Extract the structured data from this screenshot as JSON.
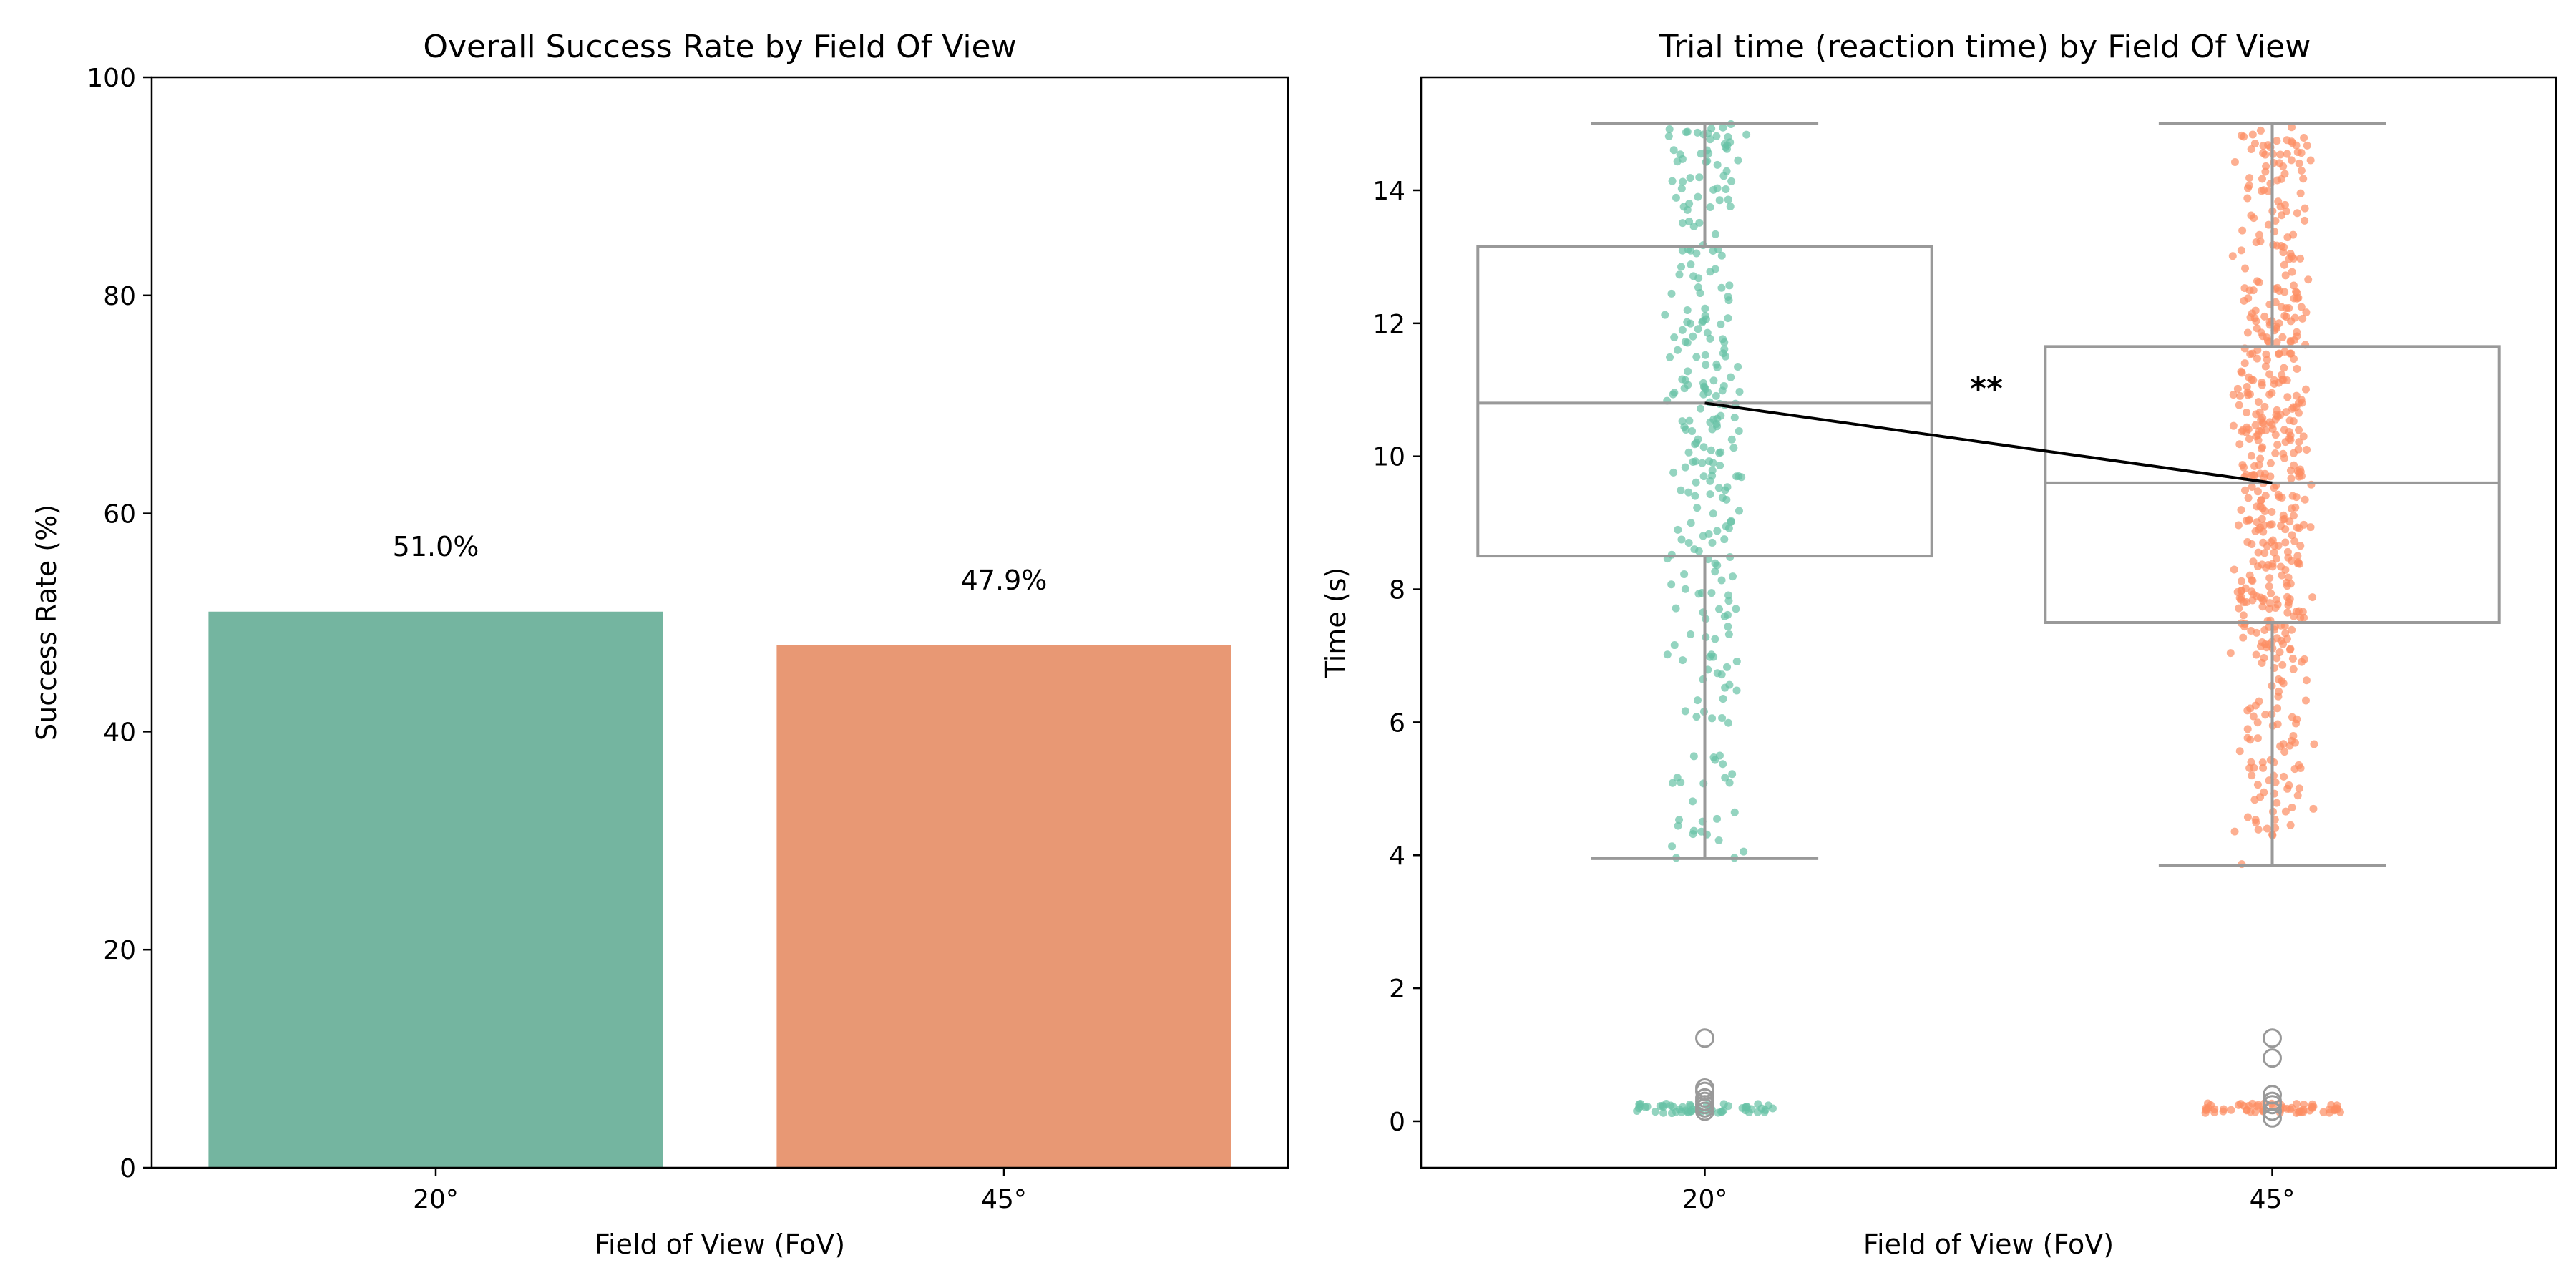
{
  "chart_data": [
    {
      "type": "bar",
      "title": "Overall Success Rate by Field Of View",
      "xlabel": "Field of View (FoV)",
      "ylabel": "Success Rate (%)",
      "categories": [
        "20°",
        "45°"
      ],
      "values": [
        51.0,
        47.9
      ],
      "value_labels": [
        "51.0%",
        "47.9%"
      ],
      "ylim": [
        0,
        100
      ],
      "yticks": [
        0,
        20,
        40,
        60,
        80,
        100
      ],
      "colors": [
        "#74b5a0",
        "#e89874"
      ],
      "grid": false
    },
    {
      "type": "box",
      "title": "Trial time (reaction time) by Field Of View",
      "xlabel": "Field of View (FoV)",
      "ylabel": "Time (s)",
      "categories": [
        "20°",
        "45°"
      ],
      "ylim": [
        -0.7,
        15.7
      ],
      "yticks": [
        0,
        2,
        4,
        6,
        8,
        10,
        12,
        14
      ],
      "colors": [
        "#66c2a5",
        "#fc8d62"
      ],
      "box_color": "#999999",
      "boxes": [
        {
          "category": "20°",
          "whisker_low": 3.95,
          "q1": 8.5,
          "median": 10.8,
          "q3": 13.15,
          "whisker_high": 15.0,
          "outliers": [
            1.25,
            0.5,
            0.45,
            0.35,
            0.3,
            0.25,
            0.2,
            0.15
          ]
        },
        {
          "category": "45°",
          "whisker_low": 3.85,
          "q1": 7.5,
          "median": 9.6,
          "q3": 11.65,
          "whisker_high": 15.0,
          "outliers": [
            1.25,
            0.95,
            0.4,
            0.3,
            0.25,
            0.15,
            0.05
          ]
        }
      ],
      "significance_label": "**",
      "median_link": true,
      "grid": false
    }
  ]
}
